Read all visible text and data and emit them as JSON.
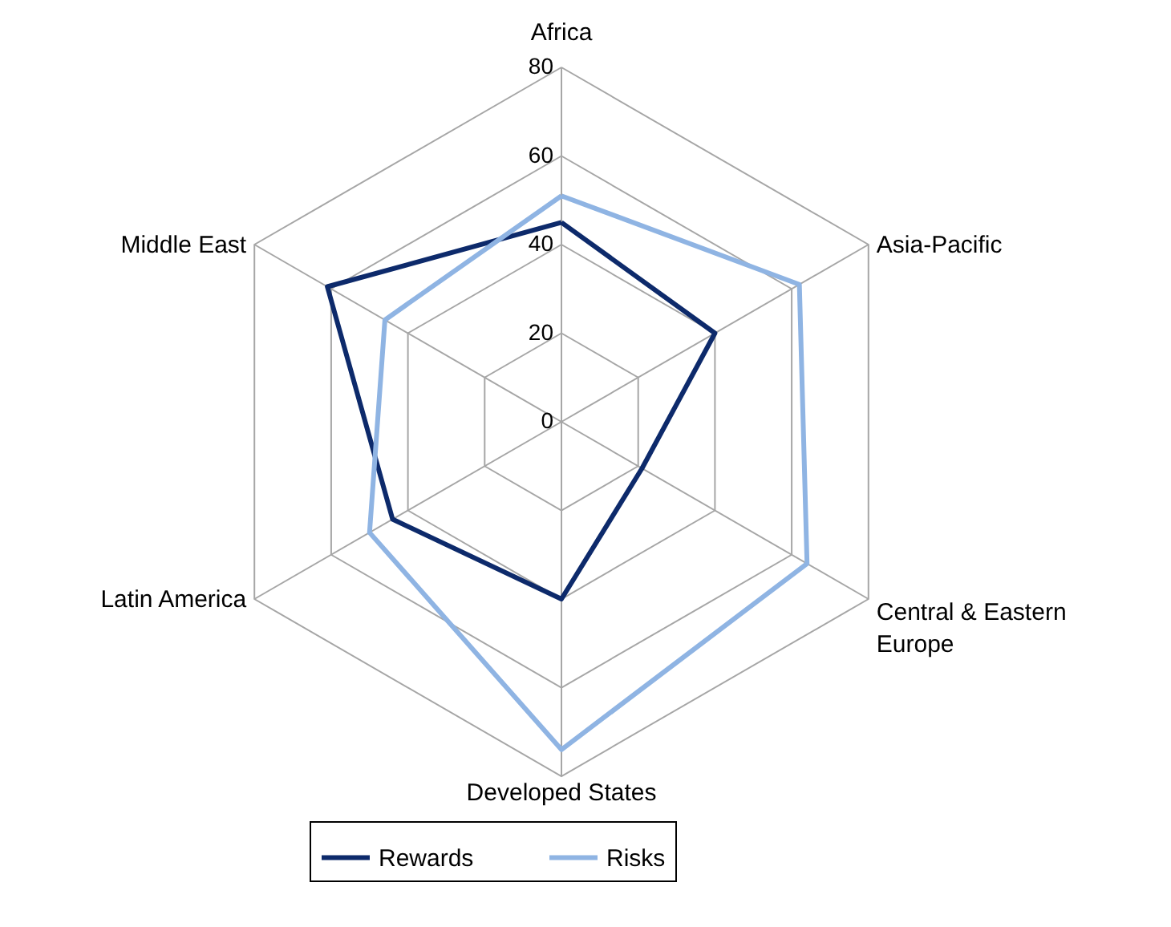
{
  "chart_data": {
    "type": "radar",
    "categories": [
      "Africa",
      "Asia-Pacific",
      "Central & Eastern Europe",
      "Developed States",
      "Latin America",
      "Middle East"
    ],
    "series": [
      {
        "name": "Rewards",
        "color": "#0d2a6b",
        "values": [
          45,
          40,
          21,
          40,
          44,
          61
        ]
      },
      {
        "name": "Risks",
        "color": "#8fb4e3",
        "values": [
          51,
          62,
          64,
          74,
          50,
          46
        ]
      }
    ],
    "ylim": [
      0,
      80
    ],
    "yticks": [
      0,
      20,
      40,
      60,
      80
    ],
    "grid": true,
    "legend": "bottom"
  }
}
